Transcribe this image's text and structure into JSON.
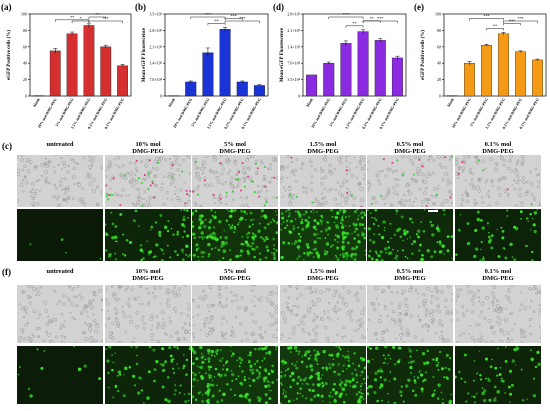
{
  "charts": [
    {
      "panel_label": "(a)",
      "chart_data": {
        "type": "bar",
        "ylabel": "eGFP Positive cells (%)",
        "categories": [
          "blank",
          "10% mol DMG-PEG",
          "5% mol DMG-PEG",
          "1.5% mol DMG-PEG",
          "0.5% mol DMG-PEG",
          "0.1% mol DMG-PEG"
        ],
        "values": [
          0.5,
          55,
          76,
          86,
          60,
          37
        ],
        "errors": [
          0,
          3,
          2,
          2,
          2,
          1.5
        ],
        "ylim": [
          0,
          100
        ],
        "yticks": [
          "0",
          "20",
          "40",
          "60",
          "80",
          "100"
        ],
        "bar_color": "#d62f2f",
        "sig_brackets": [
          {
            "from": 1,
            "to": 3,
            "label": "**"
          },
          {
            "from": 2,
            "to": 3,
            "label": "*"
          },
          {
            "from": 3,
            "to": 4,
            "label": "**"
          },
          {
            "from": 3,
            "to": 5,
            "label": "***"
          }
        ]
      }
    },
    {
      "panel_label": "(b)",
      "chart_data": {
        "type": "bar",
        "ylabel": "Mean eGFP Fluorescence",
        "categories": [
          "blank",
          "10% mol DMG-PEG",
          "5% mol DMG-PEG",
          "1.5% mol DMG-PEG",
          "0.5% mol DMG-PEG",
          "0.1% mol DMG-PEG"
        ],
        "values": [
          0.01,
          0.6,
          1.85,
          2.85,
          0.6,
          0.45
        ],
        "errors": [
          0,
          0.04,
          0.2,
          0.08,
          0.04,
          0.03
        ],
        "ylim": [
          0,
          3.5
        ],
        "yticks": [
          "0",
          "7.0×10⁴",
          "1.4×10⁵",
          "2.1×10⁵",
          "2.8×10⁵",
          "3.5×10⁵"
        ],
        "bar_color": "#1a33d6",
        "sig_brackets": [
          {
            "from": 2,
            "to": 3,
            "label": "**"
          },
          {
            "from": 3,
            "to": 4,
            "label": "***"
          },
          {
            "from": 1,
            "to": 3,
            "label": "***"
          },
          {
            "from": 3,
            "to": 5,
            "label": "***"
          }
        ]
      }
    },
    {
      "panel_label": "(d)",
      "chart_data": {
        "type": "bar",
        "ylabel": "Mean eGFP Fluorescence",
        "categories": [
          "blank",
          "10% mol DMG-PEG",
          "5% mol DMG-PEG",
          "1.5% mol DMG-PEG",
          "0.5% mol DMG-PEG",
          "0.1% mol DMG-PEG"
        ],
        "values": [
          0.36,
          0.56,
          0.9,
          1.1,
          0.95,
          0.65
        ],
        "errors": [
          0,
          0.02,
          0.04,
          0.03,
          0.03,
          0.03
        ],
        "ylim": [
          0,
          1.4
        ],
        "yticks": [
          "0",
          "3.5×10⁴",
          "7.0×10⁴",
          "1.4×10⁵",
          "2.1×10⁵",
          "2.8×10⁵"
        ],
        "bar_color": "#8a2be2",
        "sig_brackets": [
          {
            "from": 2,
            "to": 3,
            "label": "**"
          },
          {
            "from": 3,
            "to": 4,
            "label": "**"
          },
          {
            "from": 1,
            "to": 3,
            "label": "***"
          },
          {
            "from": 3,
            "to": 5,
            "label": "***"
          }
        ]
      }
    },
    {
      "panel_label": "(e)",
      "chart_data": {
        "type": "bar",
        "ylabel": "eGFP Positive cells (%)",
        "categories": [
          "blank",
          "10% mol DMG-PEG",
          "5% mol DMG-PEG",
          "1.5% mol DMG-PEG",
          "0.5% mol DMG-PEG",
          "0.1% mol DMG-PEG"
        ],
        "values": [
          0.5,
          40,
          62,
          76,
          54,
          44
        ],
        "errors": [
          0,
          2,
          1,
          1.5,
          1,
          1
        ],
        "ylim": [
          0,
          100
        ],
        "yticks": [
          "0",
          "20",
          "40",
          "60",
          "80",
          "100"
        ],
        "bar_color": "#f59a16",
        "sig_brackets": [
          {
            "from": 2,
            "to": 3,
            "label": "**"
          },
          {
            "from": 3,
            "to": 4,
            "label": "***"
          },
          {
            "from": 1,
            "to": 3,
            "label": "***"
          },
          {
            "from": 3,
            "to": 5,
            "label": "***"
          }
        ]
      }
    }
  ],
  "figure_c": {
    "panel_label": "(c)",
    "columns": [
      "untreated",
      "10% mol\nDMG-PEG",
      "5% mol\nDMG-PEG",
      "1.5% mol\nDMG-PEG",
      "0.5% mol\nDMG-PEG",
      "0.1% mol\nDMG-PEG"
    ],
    "brightfield_green_overlay": [
      0,
      0.55,
      0.55,
      0.15,
      0.25,
      0.1
    ],
    "fluorescence_intensity": [
      0.02,
      0.35,
      0.75,
      0.9,
      0.45,
      0.25
    ]
  },
  "figure_f": {
    "panel_label": "(f)",
    "columns": [
      "untreated",
      "10% mol\nDMG-PEG",
      "5% mol\nDMG-PEG",
      "1.5% mol\nDMG-PEG",
      "0.5% mol\nDMG-PEG",
      "0.1% mol\nDMG-PEG"
    ],
    "fluorescence_intensity": [
      0.05,
      0.35,
      0.8,
      0.85,
      0.5,
      0.3
    ]
  },
  "colors": {
    "axis": "#000000",
    "error": "#000000",
    "cell_green": "#39e62b",
    "brightfield": "#cfcfcf"
  }
}
